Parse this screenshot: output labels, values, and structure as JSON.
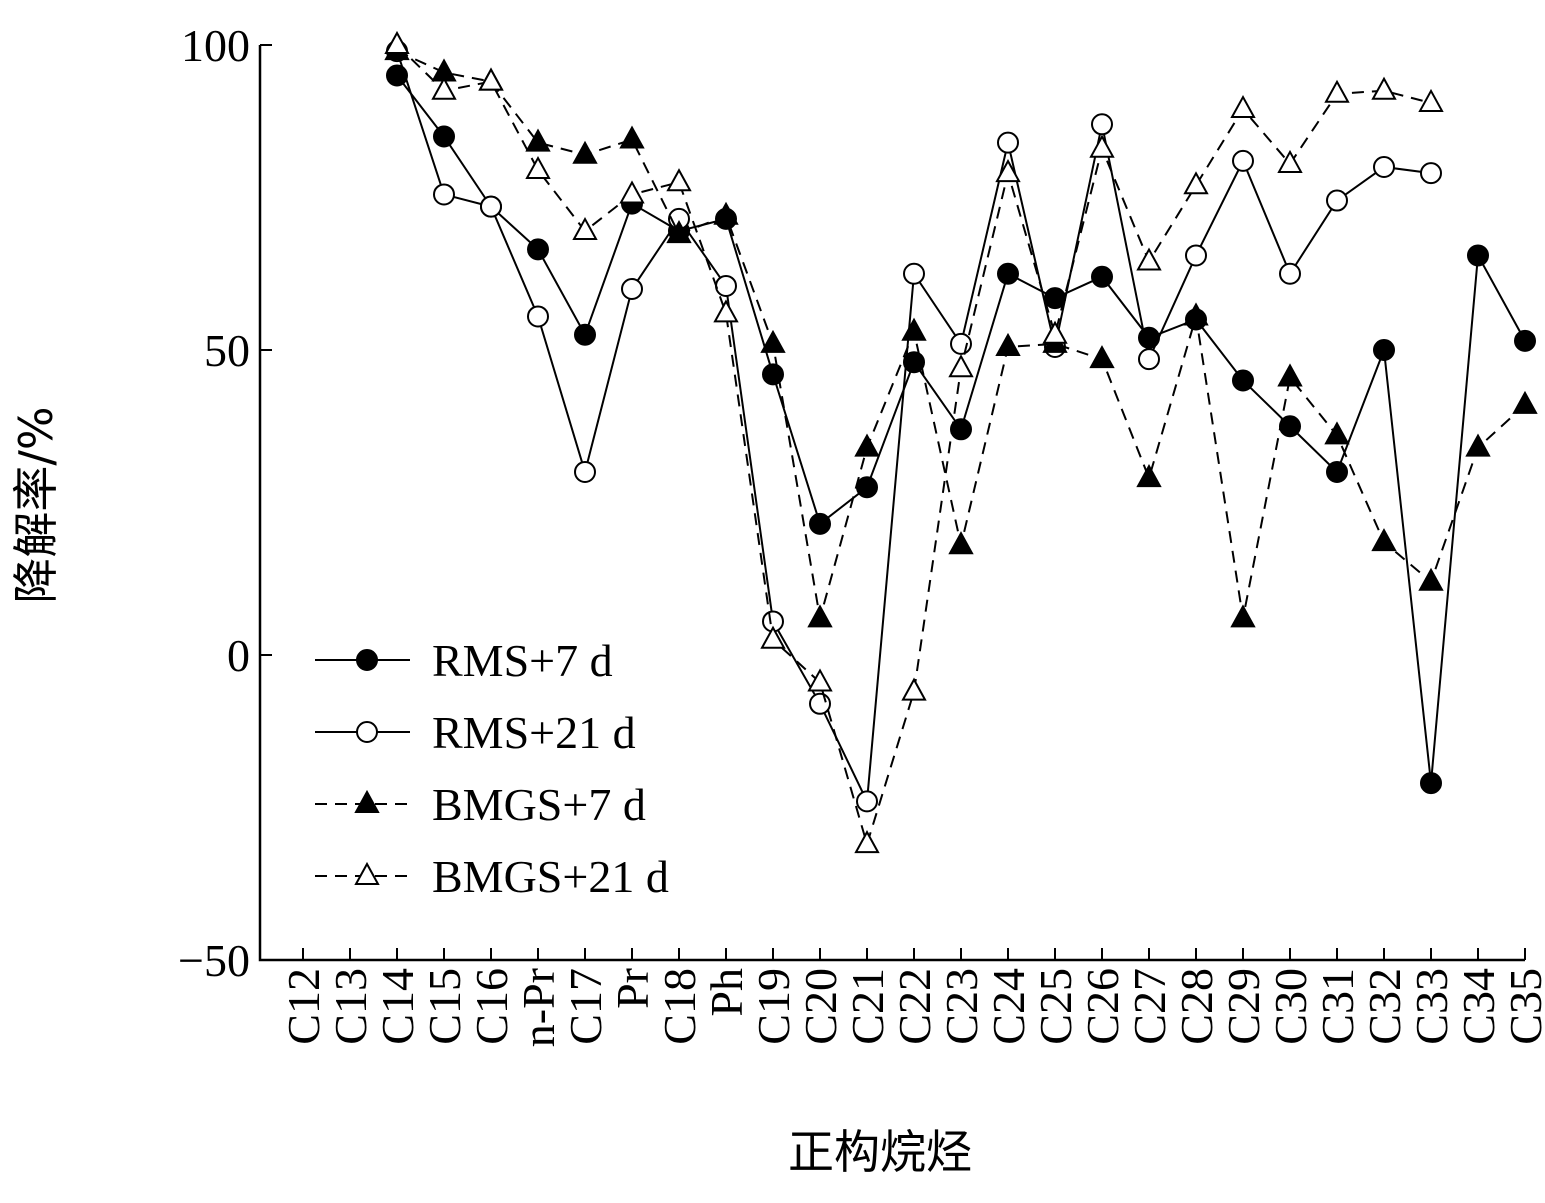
{
  "chart_data": {
    "type": "line",
    "xlabel": "正构烷烃",
    "ylabel": "降解率/%",
    "ylim": [
      -50,
      100
    ],
    "yticks": [
      -50,
      0,
      50,
      100
    ],
    "categories": [
      "C12",
      "C13",
      "C14",
      "C15",
      "C16",
      "n-Pr",
      "C17",
      "Pr",
      "C18",
      "Ph",
      "C19",
      "C20",
      "C21",
      "C22",
      "C23",
      "C24",
      "C25",
      "C26",
      "C27",
      "C28",
      "C29",
      "C30",
      "C31",
      "C32",
      "C33",
      "C34",
      "C35"
    ],
    "legend_position": "lower-left",
    "series": [
      {
        "name": "RMS+7 d",
        "line_style": "solid",
        "marker": "filled-circle",
        "values": [
          null,
          null,
          95,
          85,
          73.5,
          66.5,
          52.5,
          74,
          69.5,
          71.5,
          46,
          21.5,
          27.5,
          48,
          37,
          62.5,
          58.5,
          62,
          52,
          55,
          45,
          37.5,
          30,
          50,
          -21,
          65.5,
          51.5
        ]
      },
      {
        "name": "RMS+21 d",
        "line_style": "solid",
        "marker": "open-circle",
        "values": [
          null,
          null,
          99,
          75.5,
          73.5,
          55.5,
          30,
          60,
          71.5,
          60.5,
          5.5,
          -8,
          -24,
          62.5,
          51,
          84,
          50.5,
          87,
          48.5,
          65.5,
          81,
          62.5,
          74.5,
          80,
          79,
          null,
          null
        ]
      },
      {
        "name": "BMGS+7 d",
        "line_style": "dashed",
        "marker": "filled-triangle",
        "values": [
          null,
          null,
          99,
          95.5,
          94,
          84,
          82,
          84.5,
          69,
          72,
          51,
          6,
          34,
          53,
          18,
          50.5,
          51,
          48.5,
          29,
          55.5,
          6,
          45.5,
          36,
          18.5,
          12,
          34,
          41
        ]
      },
      {
        "name": "BMGS+21 d",
        "line_style": "dashed",
        "marker": "open-triangle",
        "values": [
          null,
          null,
          100,
          92.5,
          94,
          79.5,
          69.5,
          75.5,
          77.5,
          56,
          2.5,
          -4.5,
          -31,
          -6,
          47,
          79,
          52.5,
          83,
          64.5,
          77,
          89.5,
          80.5,
          92,
          92.5,
          90.5,
          null,
          null
        ]
      }
    ]
  }
}
